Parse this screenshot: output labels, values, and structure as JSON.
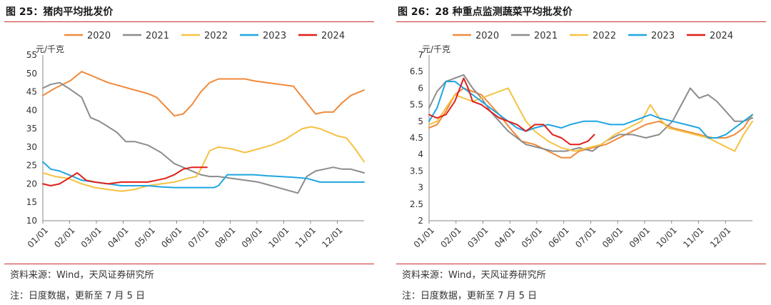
{
  "panels": [
    {
      "title": "图 25：猪肉平均批发价",
      "source": "资料来源：Wind，天风证券研究所",
      "note": "注：日度数据，更新至 7 月 5 日"
    },
    {
      "title": "图 26：28 种重点监测蔬菜平均批发价",
      "source": "资料来源：Wind，天风证券研究所",
      "note": "注：日度数据，更新至 7 月 5 日"
    }
  ],
  "colors": {
    "2020": "#f08a3c",
    "2021": "#8c8c8c",
    "2022": "#f5c242",
    "2023": "#1fa6e0",
    "2024": "#e0201b",
    "accent_rule": "#c9302c"
  },
  "chart_data": [
    {
      "type": "line",
      "title": "",
      "ylabel": "元/千克",
      "xlabel": "",
      "ylim": [
        10,
        55
      ],
      "yticks": [
        10,
        15,
        20,
        25,
        30,
        35,
        40,
        45,
        50,
        55
      ],
      "x_tick_labels": [
        "01/01",
        "02/01",
        "03/01",
        "04/01",
        "05/01",
        "06/01",
        "07/01",
        "08/01",
        "09/01",
        "10/01",
        "11/01",
        "12/01"
      ],
      "grid": false,
      "legend_position": "top",
      "series": [
        {
          "name": "2020",
          "x": [
            1,
            15,
            32,
            45,
            60,
            75,
            90,
            105,
            120,
            130,
            140,
            150,
            160,
            170,
            180,
            190,
            200,
            210,
            220,
            230,
            240,
            255,
            270,
            285,
            300,
            310,
            320,
            330,
            340,
            350,
            365
          ],
          "values": [
            44,
            46,
            48,
            50.5,
            49,
            47.5,
            46.5,
            45.5,
            44.5,
            43.5,
            41,
            38.5,
            39,
            41.5,
            45,
            47.5,
            48.5,
            48.5,
            48.5,
            48.5,
            48,
            47.5,
            47,
            46.5,
            42,
            39,
            39.5,
            39.5,
            42,
            44,
            45.5
          ]
        },
        {
          "name": "2021",
          "x": [
            1,
            10,
            20,
            30,
            45,
            55,
            65,
            75,
            85,
            95,
            105,
            120,
            135,
            150,
            160,
            170,
            180,
            190,
            200,
            215,
            230,
            245,
            260,
            275,
            290,
            300,
            310,
            320,
            330,
            340,
            350,
            365
          ],
          "values": [
            46,
            47,
            47.5,
            46,
            43.5,
            38,
            37,
            35.5,
            34,
            31.5,
            31.5,
            30.5,
            28.5,
            25.5,
            24.5,
            23.5,
            22.5,
            22,
            22,
            21.5,
            21,
            20.5,
            19.5,
            18.5,
            17.5,
            22,
            23.5,
            24,
            24.5,
            24,
            24,
            23
          ]
        },
        {
          "name": "2022",
          "x": [
            1,
            15,
            30,
            45,
            60,
            75,
            90,
            105,
            120,
            135,
            150,
            165,
            175,
            180,
            190,
            200,
            215,
            230,
            245,
            260,
            275,
            285,
            295,
            305,
            315,
            325,
            335,
            345,
            355,
            365
          ],
          "values": [
            23,
            22,
            21.5,
            20,
            19,
            18.5,
            18,
            18.5,
            19.5,
            20,
            20.5,
            21.5,
            22,
            24,
            29,
            30,
            29.5,
            28.5,
            29.5,
            30.5,
            32,
            33.5,
            35,
            35.5,
            35,
            34,
            33,
            32.5,
            29.5,
            26
          ]
        },
        {
          "name": "2023",
          "x": [
            1,
            10,
            20,
            30,
            45,
            60,
            75,
            90,
            105,
            120,
            135,
            150,
            165,
            180,
            195,
            200,
            210,
            225,
            240,
            255,
            270,
            285,
            300,
            315,
            330,
            345,
            365
          ],
          "values": [
            26,
            24,
            23.5,
            22.5,
            21,
            20.5,
            20,
            19.5,
            19.5,
            19.5,
            19.2,
            19,
            19,
            19,
            19,
            19.5,
            22.5,
            22.5,
            22.5,
            22.2,
            22,
            21.8,
            21.5,
            20.5,
            20.5,
            20.5,
            20.5
          ]
        },
        {
          "name": "2024",
          "x": [
            1,
            10,
            20,
            30,
            40,
            50,
            60,
            75,
            90,
            105,
            120,
            130,
            140,
            150,
            160,
            170,
            180,
            187
          ],
          "values": [
            20,
            19.5,
            20,
            21.5,
            23,
            21,
            20.5,
            20,
            20.5,
            20.5,
            20.5,
            21,
            21.5,
            22.5,
            24,
            24.5,
            24.5,
            24.5
          ]
        }
      ]
    },
    {
      "type": "line",
      "title": "",
      "ylabel": "元/千克",
      "xlabel": "",
      "ylim": [
        2,
        7
      ],
      "yticks": [
        2,
        2.5,
        3,
        3.5,
        4,
        4.5,
        5,
        5.5,
        6,
        6.5,
        7
      ],
      "x_tick_labels": [
        "01/01",
        "02/01",
        "03/01",
        "04/01",
        "05/01",
        "06/01",
        "07/01",
        "08/01",
        "09/01",
        "10/01",
        "11/01",
        "12/01"
      ],
      "grid": false,
      "legend_position": "top",
      "series": [
        {
          "name": "2020",
          "x": [
            1,
            10,
            20,
            30,
            40,
            50,
            60,
            70,
            80,
            95,
            105,
            120,
            135,
            150,
            160,
            170,
            185,
            200,
            215,
            230,
            245,
            260,
            275,
            290,
            305,
            320,
            335,
            345,
            355,
            365
          ],
          "values": [
            4.8,
            4.9,
            5.3,
            5.8,
            6.0,
            5.9,
            5.8,
            5.5,
            5.2,
            4.7,
            4.4,
            4.3,
            4.1,
            3.9,
            3.9,
            4.1,
            4.2,
            4.3,
            4.5,
            4.7,
            4.9,
            5.0,
            4.8,
            4.7,
            4.6,
            4.5,
            4.5,
            4.6,
            4.8,
            5.2
          ]
        },
        {
          "name": "2021",
          "x": [
            1,
            10,
            20,
            30,
            40,
            45,
            50,
            60,
            70,
            80,
            90,
            100,
            110,
            125,
            140,
            155,
            170,
            185,
            200,
            215,
            230,
            245,
            260,
            275,
            285,
            295,
            305,
            315,
            325,
            335,
            345,
            355,
            365
          ],
          "values": [
            5.4,
            5.9,
            6.2,
            6.3,
            6.4,
            6.2,
            6.0,
            5.7,
            5.3,
            5.0,
            4.7,
            4.5,
            4.3,
            4.2,
            4.1,
            4.1,
            4.2,
            4.1,
            4.4,
            4.6,
            4.6,
            4.5,
            4.6,
            5.0,
            5.5,
            6.0,
            5.7,
            5.8,
            5.6,
            5.3,
            5.0,
            5.0,
            5.1
          ]
        },
        {
          "name": "2022",
          "x": [
            1,
            10,
            20,
            30,
            40,
            50,
            60,
            70,
            80,
            90,
            100,
            110,
            120,
            135,
            150,
            165,
            180,
            195,
            210,
            225,
            240,
            250,
            260,
            270,
            285,
            300,
            315,
            330,
            345,
            355,
            365
          ],
          "values": [
            4.9,
            5.0,
            5.4,
            5.8,
            5.7,
            5.6,
            5.7,
            5.8,
            5.9,
            6.0,
            5.5,
            5.0,
            4.7,
            4.4,
            4.2,
            4.1,
            4.2,
            4.3,
            4.6,
            4.8,
            5.0,
            5.5,
            5.1,
            4.8,
            4.7,
            4.6,
            4.5,
            4.3,
            4.1,
            4.6,
            5.0
          ]
        },
        {
          "name": "2023",
          "x": [
            1,
            10,
            20,
            30,
            40,
            50,
            60,
            75,
            90,
            100,
            110,
            120,
            135,
            150,
            160,
            175,
            190,
            205,
            220,
            240,
            250,
            260,
            275,
            290,
            305,
            315,
            325,
            335,
            345,
            355,
            365
          ],
          "values": [
            5.0,
            5.4,
            6.2,
            6.2,
            6.0,
            5.8,
            5.6,
            5.3,
            5.0,
            4.8,
            4.7,
            4.8,
            4.9,
            4.8,
            4.9,
            5.0,
            5.0,
            4.9,
            4.9,
            5.1,
            5.2,
            5.1,
            5.0,
            4.9,
            4.8,
            4.5,
            4.5,
            4.6,
            4.8,
            5.0,
            5.2
          ]
        },
        {
          "name": "2024",
          "x": [
            1,
            10,
            20,
            30,
            40,
            45,
            50,
            60,
            70,
            80,
            90,
            100,
            110,
            120,
            130,
            140,
            150,
            160,
            170,
            180,
            187
          ],
          "values": [
            5.2,
            5.1,
            5.2,
            5.6,
            6.3,
            6.0,
            5.6,
            5.5,
            5.3,
            5.1,
            5.0,
            4.9,
            4.7,
            4.9,
            4.9,
            4.6,
            4.5,
            4.3,
            4.3,
            4.4,
            4.6
          ]
        }
      ]
    }
  ]
}
